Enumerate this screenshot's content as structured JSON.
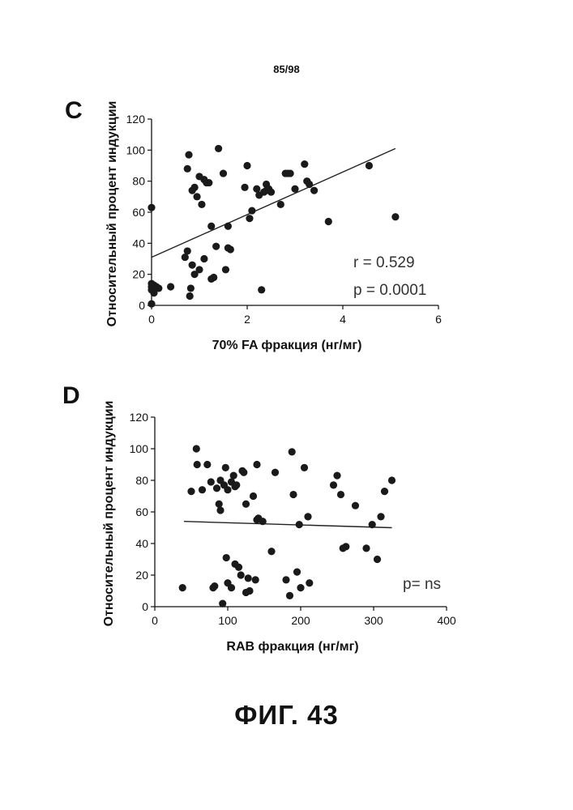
{
  "page_number": "85/98",
  "figure_caption": "ФИГ. 43",
  "panels": [
    {
      "letter": "C"
    },
    {
      "letter": "D"
    }
  ],
  "chart_data": [
    {
      "type": "scatter",
      "title": "",
      "xlabel": "70% FA фракция (нг/мг)",
      "ylabel": "Относительный процент индукции",
      "xlim": [
        0,
        6
      ],
      "ylim": [
        0,
        120
      ],
      "xticks": [
        0,
        2,
        4,
        6
      ],
      "yticks": [
        0,
        20,
        40,
        60,
        80,
        100,
        120
      ],
      "grid": false,
      "annotations": [
        "r = 0.529",
        "p = 0.0001"
      ],
      "trendline": {
        "x": [
          0,
          5.1
        ],
        "y": [
          31,
          101
        ]
      },
      "x": [
        0,
        0,
        0,
        0,
        0,
        0.02,
        0.05,
        0.05,
        0.08,
        0.1,
        0.15,
        0.4,
        0.7,
        0.75,
        0.75,
        0.78,
        0.8,
        0.82,
        0.85,
        0.85,
        0.9,
        0.9,
        0.95,
        1.0,
        1.0,
        1.05,
        1.1,
        1.1,
        1.15,
        1.2,
        1.25,
        1.25,
        1.3,
        1.35,
        1.4,
        1.5,
        1.55,
        1.6,
        1.6,
        1.65,
        1.95,
        2.0,
        2.05,
        2.1,
        2.2,
        2.25,
        2.3,
        2.35,
        2.4,
        2.4,
        2.45,
        2.5,
        2.7,
        2.8,
        2.85,
        2.9,
        3.0,
        3.2,
        3.25,
        3.3,
        3.4,
        3.7,
        4.55,
        5.1
      ],
      "y": [
        63,
        14,
        12,
        10,
        1,
        11,
        8,
        13,
        12,
        12,
        11,
        12,
        31,
        35,
        88,
        97,
        6,
        11,
        74,
        26,
        20,
        76,
        70,
        23,
        83,
        65,
        81,
        30,
        79,
        79,
        17,
        51,
        18,
        38,
        101,
        85,
        23,
        37,
        51,
        36,
        76,
        90,
        56,
        61,
        75,
        71,
        10,
        73,
        74,
        78,
        75,
        73,
        65,
        85,
        85,
        85,
        75,
        91,
        80,
        78,
        74,
        54,
        90,
        57
      ]
    },
    {
      "type": "scatter",
      "title": "",
      "xlabel": "RAB фракция (нг/мг)",
      "ylabel": "Относительный процент индукции",
      "xlim": [
        0,
        400
      ],
      "ylim": [
        0,
        120
      ],
      "xticks": [
        0,
        100,
        200,
        300,
        400
      ],
      "yticks": [
        0,
        20,
        40,
        60,
        80,
        100,
        120
      ],
      "grid": false,
      "annotations": [
        "p= ns"
      ],
      "trendline": {
        "x": [
          40,
          325
        ],
        "y": [
          54,
          50
        ]
      },
      "x": [
        38,
        50,
        57,
        58,
        65,
        72,
        77,
        80,
        82,
        85,
        88,
        90,
        90,
        93,
        95,
        97,
        98,
        100,
        100,
        105,
        105,
        108,
        110,
        110,
        112,
        115,
        118,
        120,
        122,
        125,
        125,
        128,
        130,
        135,
        138,
        140,
        140,
        142,
        148,
        160,
        165,
        180,
        185,
        188,
        190,
        195,
        198,
        200,
        205,
        210,
        212,
        245,
        250,
        255,
        258,
        262,
        275,
        290,
        298,
        305,
        310,
        315,
        325
      ],
      "y": [
        12,
        73,
        100,
        90,
        74,
        90,
        79,
        12,
        13,
        75,
        65,
        61,
        80,
        2,
        77,
        88,
        31,
        74,
        15,
        79,
        12,
        83,
        27,
        76,
        77,
        25,
        20,
        86,
        85,
        65,
        9,
        18,
        10,
        70,
        17,
        55,
        90,
        56,
        54,
        35,
        85,
        17,
        7,
        98,
        71,
        22,
        52,
        12,
        88,
        57,
        15,
        77,
        83,
        71,
        37,
        38,
        64,
        37,
        52,
        30,
        57,
        73,
        80
      ]
    }
  ]
}
